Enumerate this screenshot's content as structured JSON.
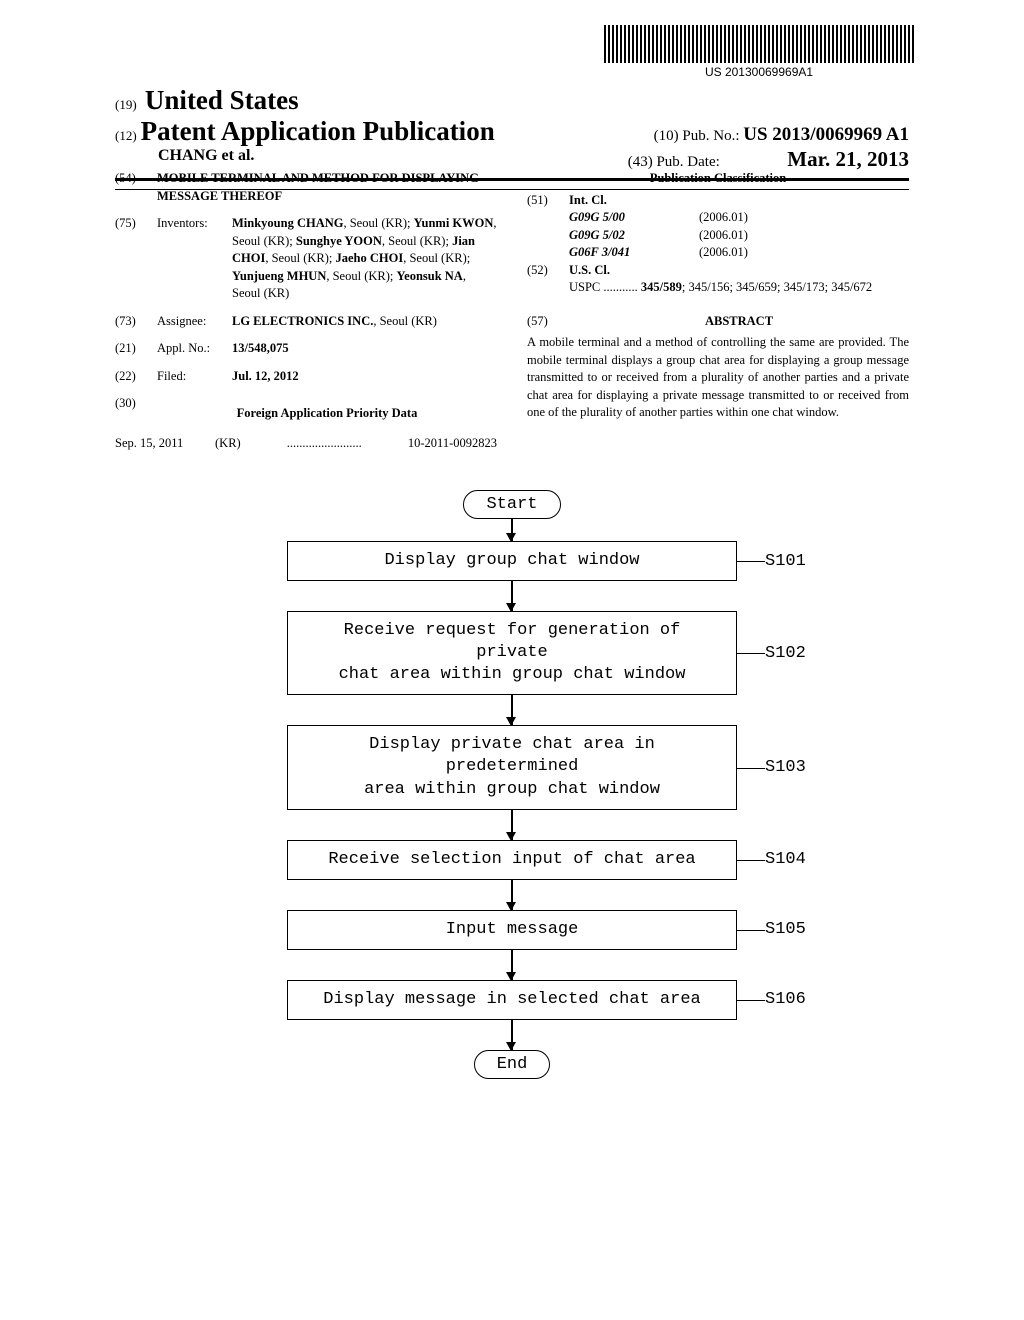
{
  "barcode_text": "US 20130069969A1",
  "header": {
    "country_code": "(19)",
    "country": "United States",
    "pub_type_code": "(12)",
    "pub_type": "Patent Application Publication",
    "authors": "CHANG et al.",
    "pub_no_code": "(10)",
    "pub_no_label": "Pub. No.:",
    "pub_no": "US 2013/0069969 A1",
    "pub_date_code": "(43)",
    "pub_date_label": "Pub. Date:",
    "pub_date": "Mar. 21, 2013"
  },
  "left": {
    "title_code": "(54)",
    "title": "MOBILE TERMINAL AND METHOD FOR DISPLAYING MESSAGE THEREOF",
    "inventors_code": "(75)",
    "inventors_label": "Inventors:",
    "inventors": [
      {
        "name": "Minkyoung CHANG",
        "loc": ", Seoul (KR); "
      },
      {
        "name": "Yunmi KWON",
        "loc": ", Seoul (KR); "
      },
      {
        "name": "Sunghye YOON",
        "loc": ", Seoul (KR); "
      },
      {
        "name": "Jian CHOI",
        "loc": ", Seoul (KR); "
      },
      {
        "name": "Jaeho CHOI",
        "loc": ", Seoul (KR); "
      },
      {
        "name": "Yunjueng MHUN",
        "loc": ", Seoul (KR); "
      },
      {
        "name": "Yeonsuk NA",
        "loc": ", Seoul (KR)"
      }
    ],
    "assignee_code": "(73)",
    "assignee_label": "Assignee:",
    "assignee_name": "LG ELECTRONICS INC.",
    "assignee_loc": ", Seoul (KR)",
    "appl_code": "(21)",
    "appl_label": "Appl. No.:",
    "appl_no": "13/548,075",
    "filed_code": "(22)",
    "filed_label": "Filed:",
    "filed_date": "Jul. 12, 2012",
    "priority_code": "(30)",
    "priority_heading": "Foreign Application Priority Data",
    "priority_date": "Sep. 15, 2011",
    "priority_country": "(KR)",
    "priority_dots": "........................",
    "priority_no": "10-2011-0092823"
  },
  "right": {
    "pub_class_heading": "Publication Classification",
    "int_code": "(51)",
    "int_label": "Int. Cl.",
    "int_items": [
      {
        "code": "G09G 5/00",
        "year": "(2006.01)"
      },
      {
        "code": "G09G 5/02",
        "year": "(2006.01)"
      },
      {
        "code": "G06F 3/041",
        "year": "(2006.01)"
      }
    ],
    "us_code": "(52)",
    "us_label": "U.S. Cl.",
    "uspc_label": "USPC",
    "uspc_dots": "...........",
    "uspc_primary": "345/589",
    "uspc_rest": "; 345/156; 345/659; 345/173; 345/672",
    "abstract_code": "(57)",
    "abstract_label": "ABSTRACT",
    "abstract_text": "A mobile terminal and a method of controlling the same are provided. The mobile terminal displays a group chat area for displaying a group message transmitted to or received from a plurality of another parties and a private chat area for displaying a private message transmitted to or received from one of the plurality of another parties within one chat window."
  },
  "flowchart": {
    "start": "Start",
    "end": "End",
    "steps": [
      {
        "text": "Display group chat window",
        "label": "S101"
      },
      {
        "text": "Receive request for generation of private\nchat area within group chat window",
        "label": "S102"
      },
      {
        "text": "Display private chat area in predetermined\narea within group chat window",
        "label": "S103"
      },
      {
        "text": "Receive selection input of chat area",
        "label": "S104"
      },
      {
        "text": "Input message",
        "label": "S105"
      },
      {
        "text": "Display message in selected chat area",
        "label": "S106"
      }
    ]
  },
  "colors": {
    "text": "#000000",
    "background": "#ffffff"
  }
}
